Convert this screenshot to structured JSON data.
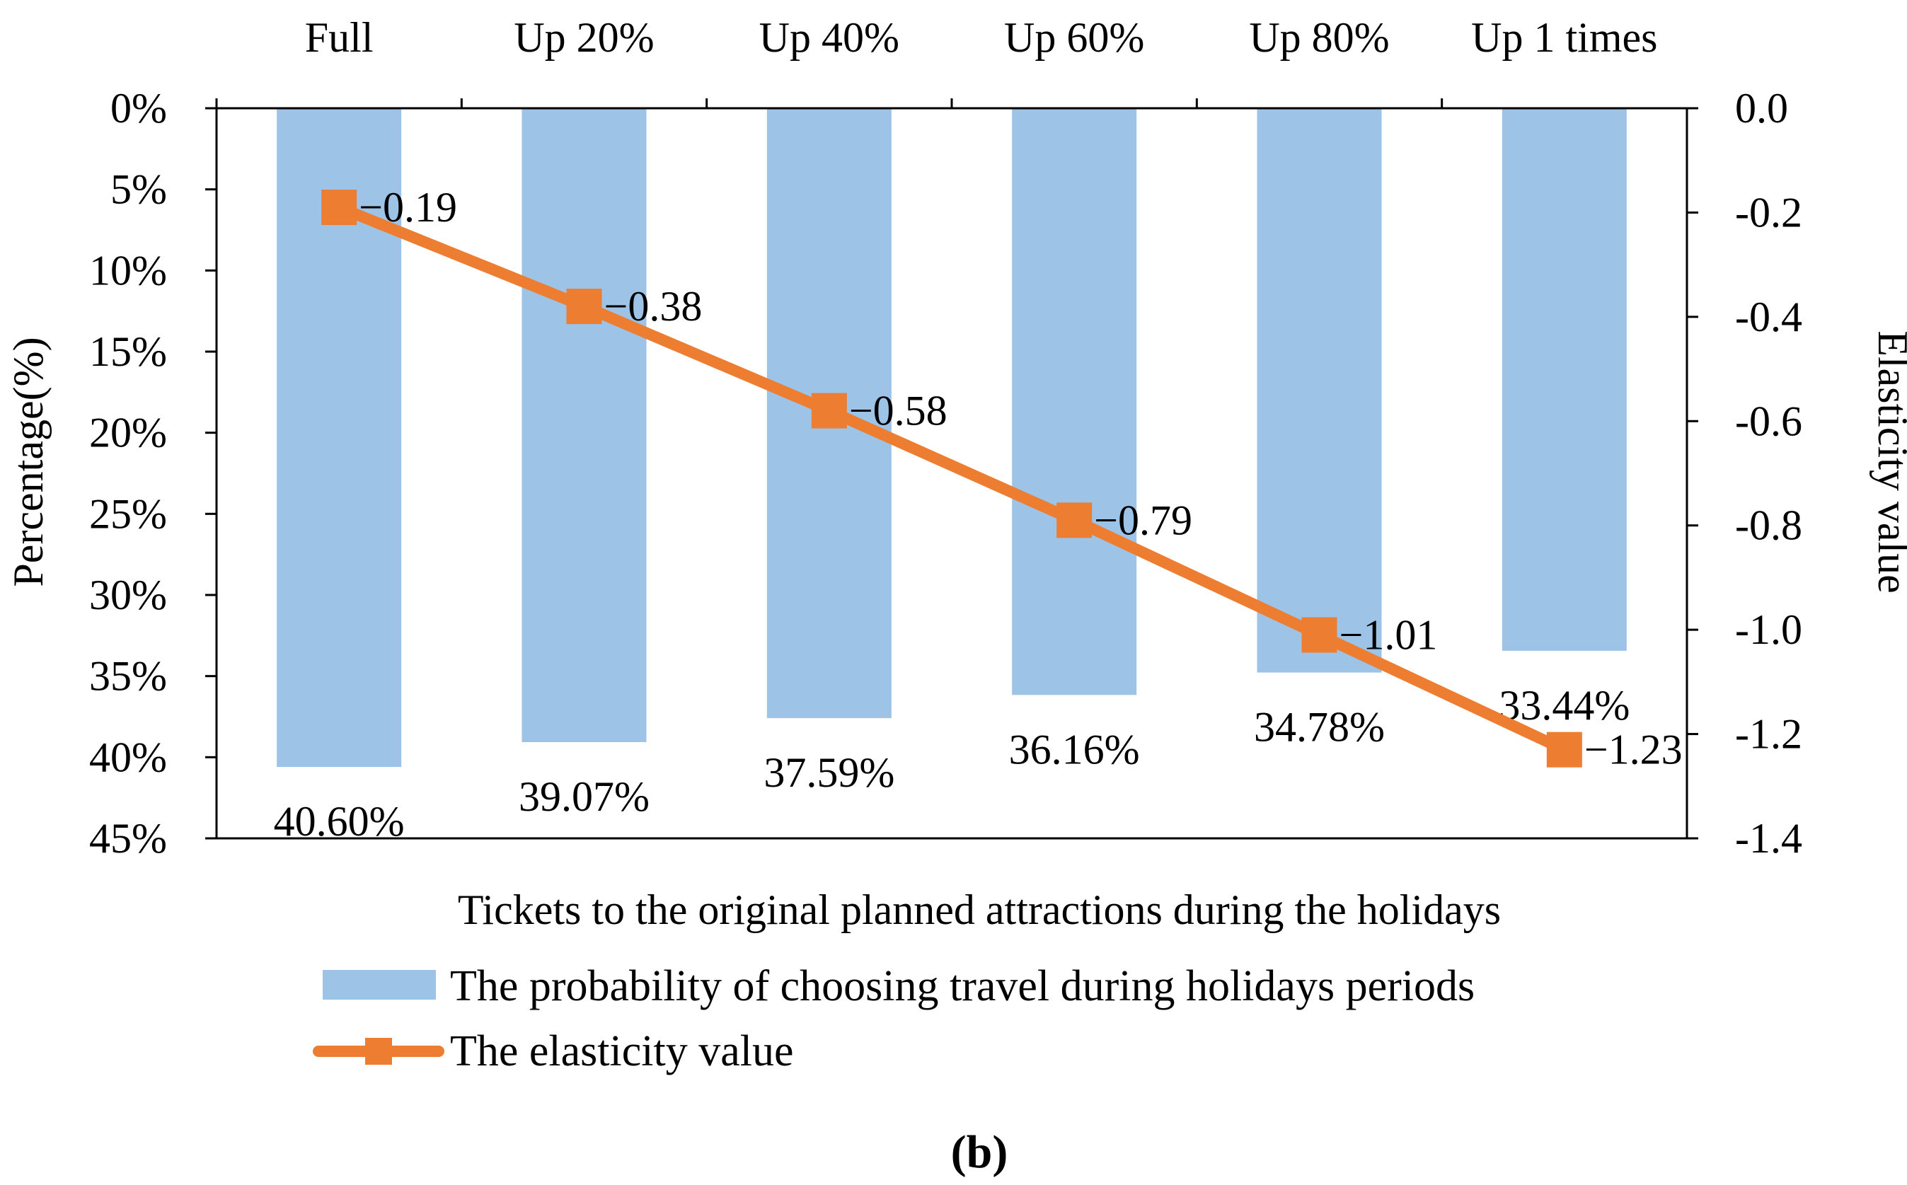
{
  "chart_data": {
    "type": "bar+line",
    "categories": [
      "Full",
      "Up 20%",
      "Up 40%",
      "Up 60%",
      "Up 80%",
      "Up 1 times"
    ],
    "xlabel": "Tickets to the original planned attractions during the holidays",
    "panel_label": "b",
    "series": [
      {
        "name": "The probability of choosing travel during holidays periods",
        "type": "bar",
        "axis": "left",
        "color": "#9DC3E6",
        "values": [
          40.6,
          39.07,
          37.59,
          36.16,
          34.78,
          33.44
        ],
        "labels": [
          "40.60%",
          "39.07%",
          "37.59%",
          "36.16%",
          "34.78%",
          "33.44%"
        ]
      },
      {
        "name": "The elasticity value",
        "type": "line",
        "axis": "right",
        "color": "#ED7D31",
        "marker": "square",
        "values": [
          -0.19,
          -0.38,
          -0.58,
          -0.79,
          -1.01,
          -1.23
        ],
        "labels": [
          "−0.19",
          "−0.38",
          "−0.58",
          "−0.79",
          "−1.01",
          "−1.23"
        ]
      }
    ],
    "y_left": {
      "label": "Percentage(%)",
      "ylim": [
        0,
        45
      ],
      "inverted": true,
      "ticks": [
        0,
        5,
        10,
        15,
        20,
        25,
        30,
        35,
        40,
        45
      ],
      "tick_labels": [
        "0%",
        "5%",
        "10%",
        "15%",
        "20%",
        "25%",
        "30%",
        "35%",
        "40%",
        "45%"
      ]
    },
    "y_right": {
      "label": "Elasticity value",
      "ylim": [
        0,
        -1.4
      ],
      "ticks": [
        0,
        -0.2,
        -0.4,
        -0.6,
        -0.8,
        -1.0,
        -1.2,
        -1.4
      ],
      "tick_labels": [
        "0.0",
        "-0.2",
        "-0.4",
        "-0.6",
        "-0.8",
        "-1.0",
        "-1.2",
        "-1.4"
      ]
    },
    "x_axis_position": "top",
    "grid": false,
    "legend_position": "bottom"
  }
}
